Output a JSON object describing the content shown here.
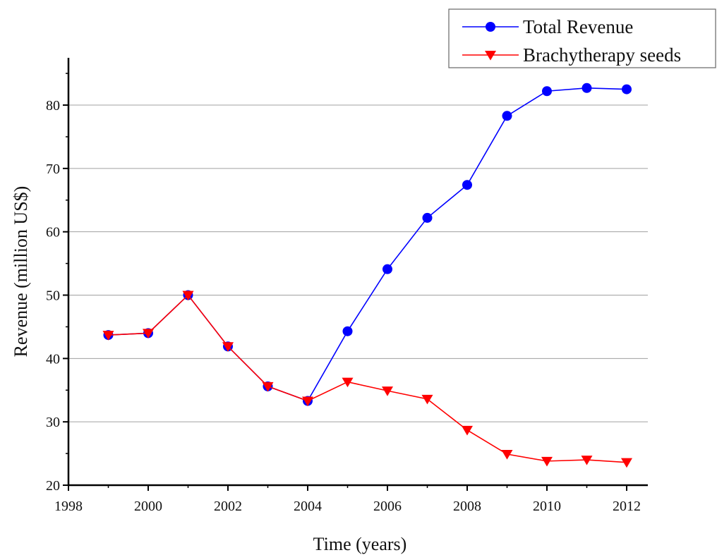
{
  "chart_data": {
    "type": "line",
    "xlabel": "Time (years)",
    "ylabel": "Revenue (million US$)",
    "xlim": [
      1998,
      2012.5
    ],
    "ylim": [
      20,
      85
    ],
    "x_ticks": [
      1998,
      2000,
      2002,
      2004,
      2006,
      2008,
      2010,
      2012
    ],
    "y_ticks": [
      20,
      30,
      40,
      50,
      60,
      70,
      80
    ],
    "grid": "horizontal",
    "legend_position": "top-right",
    "series": [
      {
        "name": "Total Revenue",
        "color": "#0000ff",
        "marker": "circle",
        "x": [
          1999,
          2000,
          2001,
          2002,
          2003,
          2004,
          2005,
          2006,
          2007,
          2008,
          2009,
          2010,
          2011,
          2012
        ],
        "y": [
          43.7,
          44.0,
          50.0,
          41.9,
          35.6,
          33.3,
          44.3,
          54.1,
          62.2,
          67.4,
          78.3,
          82.2,
          82.7,
          82.5
        ]
      },
      {
        "name": "Brachytherapy seeds",
        "color": "#ff0000",
        "marker": "triangle-down",
        "x": [
          1999,
          2000,
          2001,
          2002,
          2003,
          2004,
          2005,
          2006,
          2007,
          2008,
          2009,
          2010,
          2011,
          2012
        ],
        "y": [
          43.7,
          44.0,
          50.0,
          41.9,
          35.6,
          33.3,
          36.3,
          34.9,
          33.6,
          28.7,
          24.9,
          23.8,
          24.0,
          23.6
        ]
      }
    ]
  }
}
